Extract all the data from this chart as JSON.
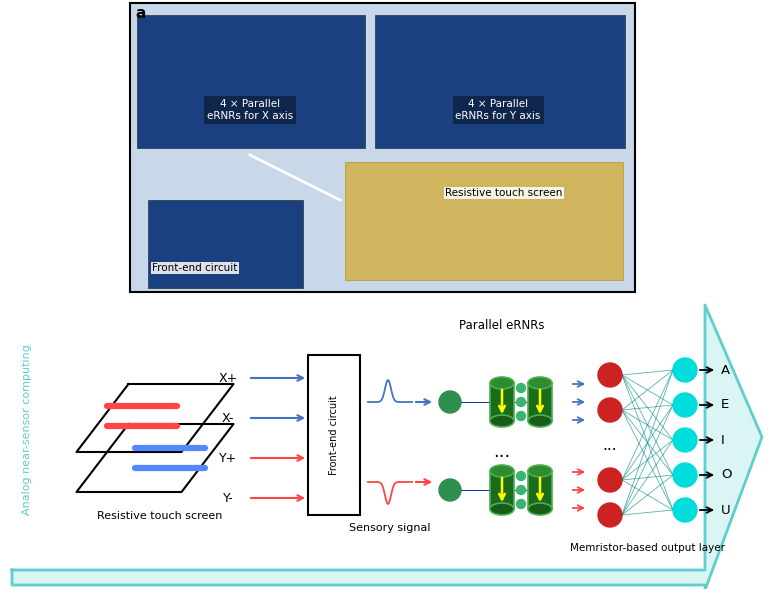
{
  "fig_width": 7.68,
  "fig_height": 5.89,
  "dpi": 100,
  "bg_color": "#ffffff",
  "arrow_color": "#5ecece",
  "label_a": "a",
  "photo_label_left": "4 × Parallel\neRNRs for X axis",
  "photo_label_right": "4 × Parallel\neRNRs for Y axis",
  "photo_label_rts": "Resistive touch screen",
  "photo_label_fec": "Front-end circuit",
  "diagram_labels_touch": "Resistive touch screen",
  "diagram_labels_signal": "Sensory signal",
  "diagram_labels_eRNRs": "Parallel eRNRs",
  "diagram_labels_output": "Memristor-based output layer",
  "diagram_labels_analog": "Analog near-sensor computing",
  "signal_labels": [
    "X+",
    "X-",
    "Y+",
    "Y-"
  ],
  "output_labels": [
    "A",
    "E",
    "I",
    "O",
    "U"
  ],
  "blue_color": "#4472C4",
  "red_color": "#FF4444",
  "green_dark": "#1a6b1a",
  "green_mid": "#3cb371",
  "cyan_color": "#00dddd",
  "dark_red": "#cc2222",
  "teal_color": "#008888",
  "front_end_label": "Front-end circuit",
  "board_color": "#1a4080",
  "ts_color": "#d4a830"
}
